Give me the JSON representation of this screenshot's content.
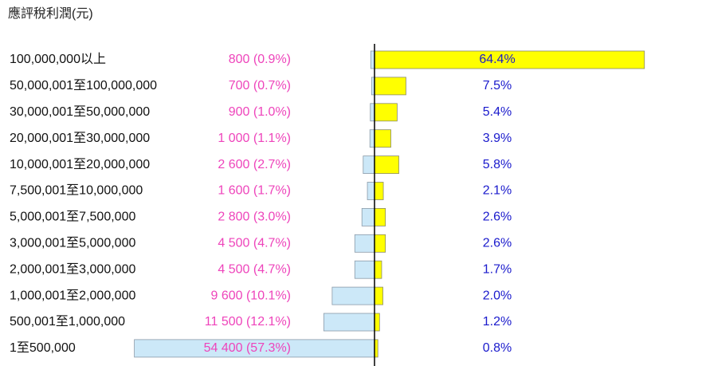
{
  "chart_data": {
    "type": "butterfly-bar",
    "title": "應評稅利潤(元)",
    "categories": [
      "100,000,000以上",
      "50,000,001至100,000,000",
      "30,000,001至50,000,000",
      "20,000,001至30,000,000",
      "10,000,001至20,000,000",
      "7,500,001至10,000,000",
      "5,000,001至7,500,000",
      "3,000,001至5,000,000",
      "2,000,001至3,000,000",
      "1,000,001至2,000,000",
      "500,001至1,000,000",
      "1至500,000"
    ],
    "series": [
      {
        "color": "#cce8f8",
        "label_color": "#ee44bb",
        "values": [
          0.9,
          0.7,
          1.0,
          1.1,
          2.7,
          1.7,
          3.0,
          4.7,
          4.7,
          10.1,
          12.1,
          57.3
        ],
        "value_labels": [
          "800 (0.9%)",
          "700 (0.7%)",
          "900 (1.0%)",
          "1 000 (1.1%)",
          "2 600 (2.7%)",
          "1 600 (1.7%)",
          "2 800 (3.0%)",
          "4 500 (4.7%)",
          "4 500 (4.7%)",
          "9 600 (10.1%)",
          "11 500 (12.1%)",
          "54 400 (57.3%)"
        ]
      },
      {
        "color": "#ffff00",
        "label_color": "#1a1acc",
        "values": [
          64.4,
          7.5,
          5.4,
          3.9,
          5.8,
          2.1,
          2.6,
          2.6,
          1.7,
          2.0,
          1.2,
          0.8
        ],
        "value_labels": [
          "64.4%",
          "7.5%",
          "5.4%",
          "3.9%",
          "5.8%",
          "2.1%",
          "2.6%",
          "2.6%",
          "1.7%",
          "2.0%",
          "1.2%",
          "0.8%"
        ]
      }
    ]
  }
}
